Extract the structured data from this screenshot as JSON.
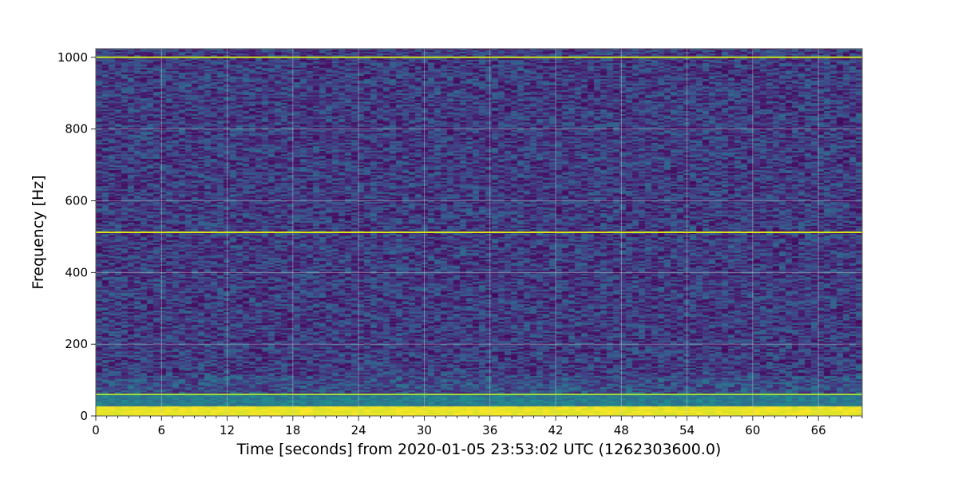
{
  "chart_data": {
    "type": "heatmap",
    "subtype": "spectrogram",
    "colormap": "viridis",
    "xlabel": "Time [seconds] from 2020-01-05 23:53:02 UTC (1262303600.0)",
    "ylabel": "Frequency [Hz]",
    "xlim": [
      0,
      70
    ],
    "ylim": [
      0,
      1024
    ],
    "x_ticks": [
      0,
      6,
      12,
      18,
      24,
      30,
      36,
      42,
      48,
      54,
      60,
      66
    ],
    "x_tick_labels": [
      "0",
      "6",
      "12",
      "18",
      "24",
      "30",
      "36",
      "42",
      "48",
      "54",
      "60",
      "66"
    ],
    "x_minor_tick_step": 1,
    "y_ticks": [
      0,
      200,
      400,
      600,
      800,
      1000
    ],
    "y_tick_labels": [
      "0",
      "200",
      "400",
      "600",
      "800",
      "1000"
    ],
    "grid": true,
    "background_level": 0.18,
    "spectral_lines": [
      {
        "frequency": 1000,
        "intensity": 0.9,
        "color": "#c8e020"
      },
      {
        "frequency": 512,
        "intensity": 0.95,
        "color": "#d8e219"
      },
      {
        "frequency": 60,
        "intensity": 0.7,
        "color": "#a0da39"
      }
    ],
    "low_frequency_band": {
      "from": 0,
      "to": 25,
      "intensity": 1.0,
      "color": "#fde725"
    }
  }
}
